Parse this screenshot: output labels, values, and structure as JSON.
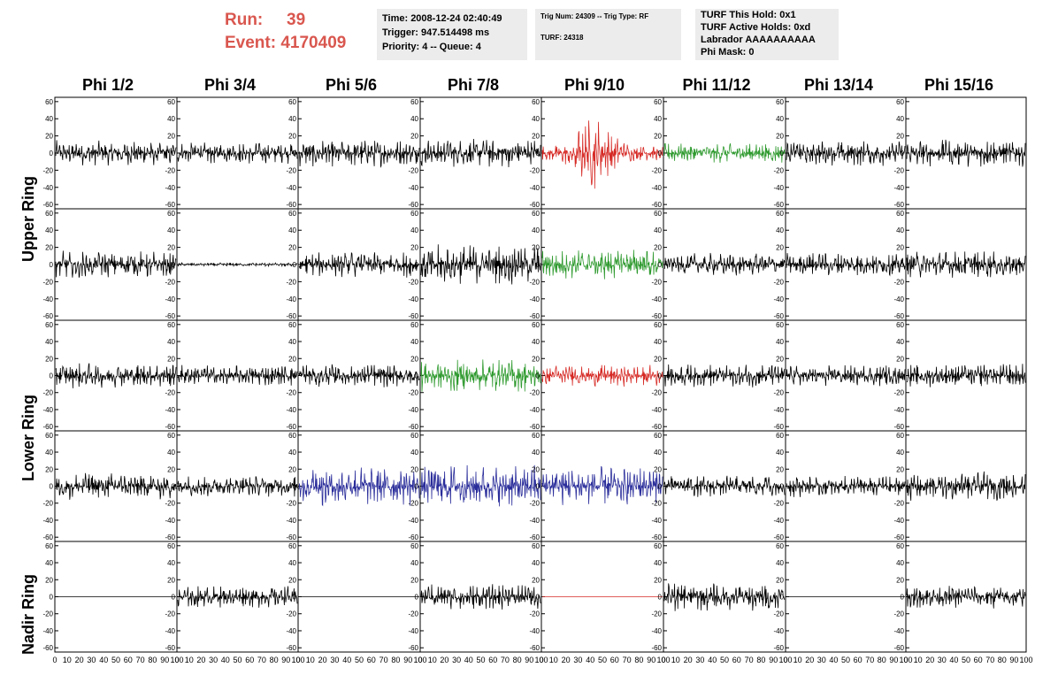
{
  "header": {
    "run_label": "Run:",
    "run_value": "39",
    "event_label": "Event:",
    "event_value": "4170409",
    "accent_color": "#d9574f",
    "info_time": [
      "Time: 2008-12-24 02:40:49",
      "Trigger: 947.514498 ms",
      "Priority: 4 -- Queue: 4"
    ],
    "info_trig": [
      "Trig Num: 24309 -- Trig Type: RF",
      "",
      "TURF: 24318"
    ],
    "info_turf": [
      "TURF This Hold: 0x1",
      "TURF Active Holds: 0xd",
      "Labrador AAAAAAAAAA",
      "Phi Mask: 0"
    ]
  },
  "columns": [
    "Phi 1/2",
    "Phi 3/4",
    "Phi 5/6",
    "Phi 7/8",
    "Phi 9/10",
    "Phi 11/12",
    "Phi 13/14",
    "Phi 15/16"
  ],
  "ring_labels": [
    "Upper Ring",
    "Lower Ring",
    "Nadir Ring"
  ],
  "chart_data": {
    "type": "line",
    "xlim": [
      0,
      100
    ],
    "ylim": [
      -65,
      65
    ],
    "y_ticks": [
      -60,
      -40,
      -20,
      0,
      20,
      40,
      60
    ],
    "x_tick_labels": [
      "0",
      "10",
      "20",
      "30",
      "40",
      "50",
      "60",
      "70",
      "80",
      "90",
      "100"
    ],
    "trace_colors": {
      "k": "#000000",
      "r": "#d62a25",
      "g": "#2f9a2f",
      "b": "#2a2d9a"
    },
    "panel_colors": [
      [
        "k",
        "k",
        "k",
        "k",
        "r",
        "g",
        "k",
        "k"
      ],
      [
        "k",
        "k",
        "k",
        "k",
        "g",
        "k",
        "k",
        "k"
      ],
      [
        "k",
        "k",
        "k",
        "g",
        "r",
        "k",
        "k",
        "k"
      ],
      [
        "k",
        "k",
        "b",
        "b",
        "b",
        "k",
        "k",
        "k"
      ],
      [
        "k",
        "k",
        "k",
        "k",
        "r",
        "k",
        "k",
        "k"
      ]
    ],
    "panel_amplitudes": [
      [
        14,
        12,
        15,
        16,
        33,
        11,
        14,
        15
      ],
      [
        15,
        2,
        14,
        22,
        17,
        13,
        13,
        15
      ],
      [
        14,
        12,
        13,
        18,
        12,
        13,
        12,
        13
      ],
      [
        15,
        12,
        22,
        24,
        22,
        12,
        12,
        16
      ],
      [
        0,
        12,
        0,
        14,
        0,
        16,
        0,
        13
      ]
    ]
  }
}
